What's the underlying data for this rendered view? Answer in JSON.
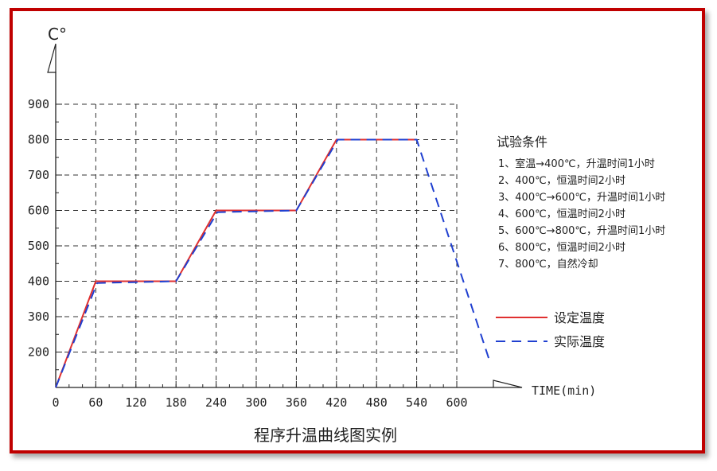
{
  "chart_data": {
    "type": "line",
    "title": "程序升温曲线图实例",
    "xlabel": "TIME(min)",
    "ylabel": "C°",
    "x_ticks": [
      0,
      60,
      120,
      180,
      240,
      300,
      360,
      420,
      480,
      540,
      600
    ],
    "y_ticks": [
      200,
      300,
      400,
      500,
      600,
      700,
      800,
      900
    ],
    "xlim": [
      0,
      600
    ],
    "ylim": [
      100,
      900
    ],
    "grid": true,
    "legend_position": "right",
    "series": [
      {
        "name": "设定温度",
        "color": "#e03030",
        "style": "solid",
        "x": [
          0,
          60,
          180,
          240,
          360,
          420,
          540
        ],
        "y": [
          100,
          400,
          400,
          600,
          600,
          800,
          800
        ]
      },
      {
        "name": "实际温度",
        "color": "#2040d0",
        "style": "dashed",
        "x": [
          0,
          62,
          180,
          242,
          360,
          422,
          540,
          650
        ],
        "y": [
          100,
          395,
          400,
          595,
          600,
          800,
          800,
          170
        ]
      }
    ],
    "conditions": {
      "title": "试验条件",
      "items": [
        "1、室温→400℃，升温时间1小时",
        "2、400℃，恒温时间2小时",
        "3、400℃→600℃，升温时间1小时",
        "4、600℃，恒温时间2小时",
        "5、600℃→800℃，升温时间1小时",
        "6、800℃，恒温时间2小时",
        "7、800℃，自然冷却"
      ]
    }
  }
}
